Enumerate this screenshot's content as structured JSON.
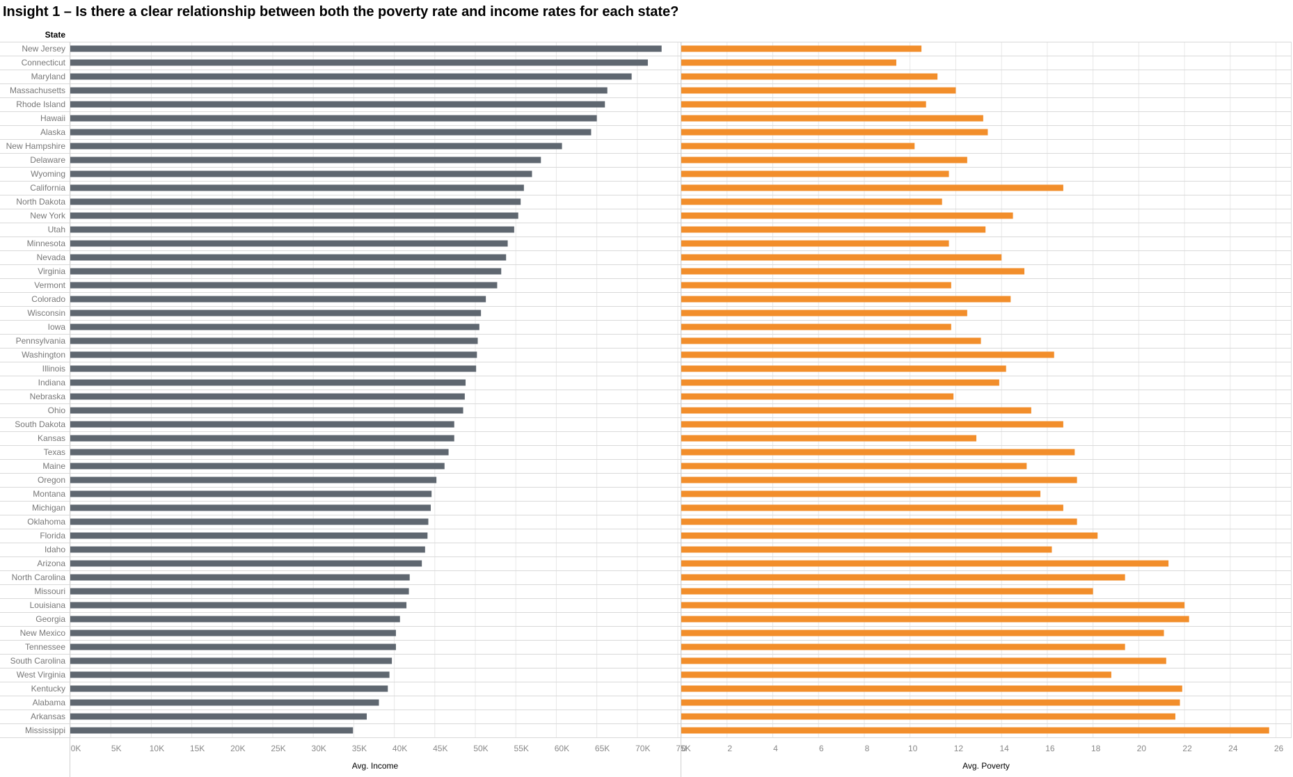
{
  "title": "Insight 1 – Is there a clear relationship between both the poverty rate and income rates for each state?",
  "row_header": "State",
  "colors": {
    "income_bar": "#5f6770",
    "poverty_bar": "#f28e2b",
    "gridline": "#e8e8e8",
    "row_divider": "#d9d9d9",
    "axis_text": "#888888",
    "label_text": "#777777",
    "header_text": "#333333"
  },
  "chart_data": [
    {
      "type": "bar",
      "orientation": "horizontal",
      "xlabel": "Avg. Income",
      "xlim": [
        0,
        75000
      ],
      "tick_values": [
        0,
        5000,
        10000,
        15000,
        20000,
        25000,
        30000,
        35000,
        40000,
        45000,
        50000,
        55000,
        60000,
        65000,
        70000,
        75000
      ],
      "tick_labels": [
        "0K",
        "5K",
        "10K",
        "15K",
        "20K",
        "25K",
        "30K",
        "35K",
        "40K",
        "45K",
        "50K",
        "55K",
        "60K",
        "65K",
        "70K",
        "75K"
      ],
      "grid": true,
      "categories": [
        "New Jersey",
        "Connecticut",
        "Maryland",
        "Massachusetts",
        "Rhode Island",
        "Hawaii",
        "Alaska",
        "New Hampshire",
        "Delaware",
        "Wyoming",
        "California",
        "North Dakota",
        "New York",
        "Utah",
        "Minnesota",
        "Nevada",
        "Virginia",
        "Vermont",
        "Colorado",
        "Wisconsin",
        "Iowa",
        "Pennsylvania",
        "Washington",
        "Illinois",
        "Indiana",
        "Nebraska",
        "Ohio",
        "South Dakota",
        "Kansas",
        "Texas",
        "Maine",
        "Oregon",
        "Montana",
        "Michigan",
        "Oklahoma",
        "Florida",
        "Idaho",
        "Arizona",
        "North Carolina",
        "Missouri",
        "Louisiana",
        "Georgia",
        "New Mexico",
        "Tennessee",
        "South Carolina",
        "West Virginia",
        "Kentucky",
        "Alabama",
        "Arkansas",
        "Mississippi"
      ],
      "values": [
        73000,
        71300,
        69300,
        66300,
        66000,
        65000,
        64300,
        60700,
        58100,
        57000,
        56000,
        55600,
        55300,
        54800,
        54000,
        53800,
        53200,
        52700,
        51300,
        50700,
        50500,
        50300,
        50200,
        50100,
        48800,
        48700,
        48500,
        47400,
        47400,
        46700,
        46200,
        45200,
        44600,
        44500,
        44200,
        44100,
        43800,
        43400,
        41900,
        41800,
        41500,
        40700,
        40200,
        40200,
        39700,
        39400,
        39200,
        38100,
        36600,
        34900
      ]
    },
    {
      "type": "bar",
      "orientation": "horizontal",
      "xlabel": "Avg. Poverty",
      "xlim": [
        0,
        26.5
      ],
      "tick_values": [
        0,
        2,
        4,
        6,
        8,
        10,
        12,
        14,
        16,
        18,
        20,
        22,
        24,
        26
      ],
      "tick_labels": [
        "0",
        "2",
        "4",
        "6",
        "8",
        "10",
        "12",
        "14",
        "16",
        "18",
        "20",
        "22",
        "24",
        "26"
      ],
      "grid": true,
      "categories": [
        "New Jersey",
        "Connecticut",
        "Maryland",
        "Massachusetts",
        "Rhode Island",
        "Hawaii",
        "Alaska",
        "New Hampshire",
        "Delaware",
        "Wyoming",
        "California",
        "North Dakota",
        "New York",
        "Utah",
        "Minnesota",
        "Nevada",
        "Virginia",
        "Vermont",
        "Colorado",
        "Wisconsin",
        "Iowa",
        "Pennsylvania",
        "Washington",
        "Illinois",
        "Indiana",
        "Nebraska",
        "Ohio",
        "South Dakota",
        "Kansas",
        "Texas",
        "Maine",
        "Oregon",
        "Montana",
        "Michigan",
        "Oklahoma",
        "Florida",
        "Idaho",
        "Arizona",
        "North Carolina",
        "Missouri",
        "Louisiana",
        "Georgia",
        "New Mexico",
        "Tennessee",
        "South Carolina",
        "West Virginia",
        "Kentucky",
        "Alabama",
        "Arkansas",
        "Mississippi"
      ],
      "values": [
        10.5,
        9.4,
        11.2,
        12.0,
        10.7,
        13.2,
        13.4,
        10.2,
        12.5,
        11.7,
        16.7,
        11.4,
        14.5,
        13.3,
        11.7,
        14.0,
        15.0,
        11.8,
        14.4,
        12.5,
        11.8,
        13.1,
        16.3,
        14.2,
        13.9,
        11.9,
        15.3,
        16.7,
        12.9,
        17.2,
        15.1,
        17.3,
        15.7,
        16.7,
        17.3,
        18.2,
        16.2,
        21.3,
        19.4,
        18.0,
        22.0,
        22.2,
        21.1,
        19.4,
        21.2,
        18.8,
        21.9,
        21.8,
        21.6,
        25.7
      ]
    }
  ]
}
